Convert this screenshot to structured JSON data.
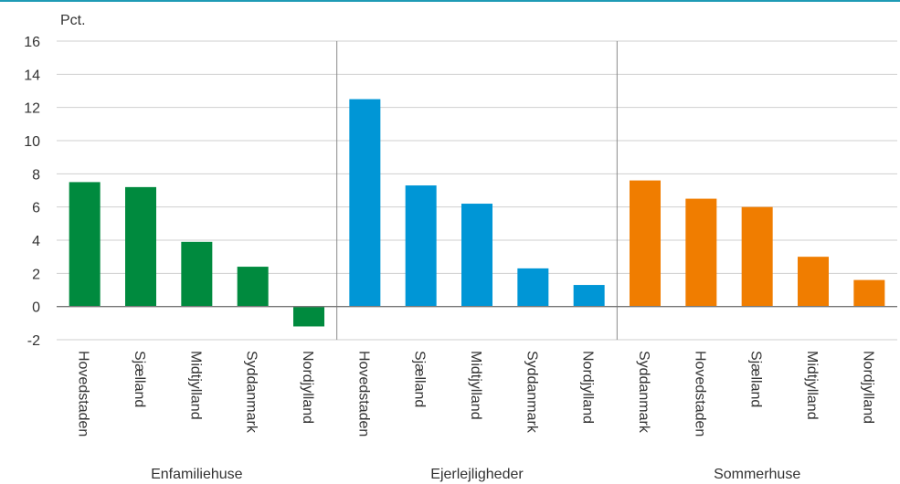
{
  "chart_data": {
    "type": "bar",
    "ylabel": "Pct.",
    "ylim": [
      -2,
      16
    ],
    "yticks": [
      -2,
      0,
      2,
      4,
      6,
      8,
      10,
      12,
      14,
      16
    ],
    "grid": true,
    "groups": [
      {
        "name": "Enfamiliehuse",
        "color": "#008a3e",
        "categories": [
          "Hovedstaden",
          "Sjælland",
          "Midtjylland",
          "Syddanmark",
          "Nordjylland"
        ],
        "values": [
          7.5,
          7.2,
          3.9,
          2.4,
          -1.2
        ]
      },
      {
        "name": "Ejerlejligheder",
        "color": "#0096d6",
        "categories": [
          "Hovedstaden",
          "Sjælland",
          "Midtjylland",
          "Syddanmark",
          "Nordjylland"
        ],
        "values": [
          12.5,
          7.3,
          6.2,
          2.3,
          1.3
        ]
      },
      {
        "name": "Sommerhuse",
        "color": "#f07d00",
        "categories": [
          "Syddanmark",
          "Hovedstaden",
          "Sjælland",
          "Midtjylland",
          "Nordjylland"
        ],
        "values": [
          7.6,
          6.5,
          6.0,
          3.0,
          1.6
        ]
      }
    ]
  }
}
